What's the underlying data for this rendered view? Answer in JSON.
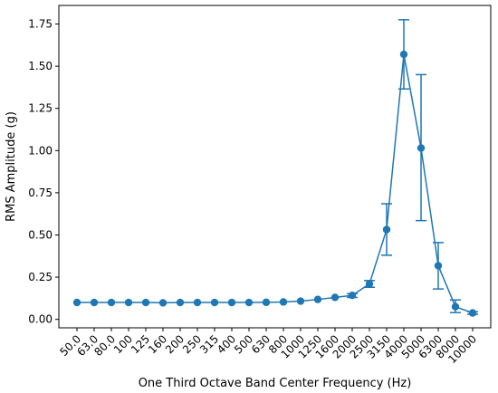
{
  "chart_data": {
    "type": "line",
    "title": "",
    "xlabel": "One Third Octave Band Center Frequency (Hz)",
    "ylabel": "RMS Amplitude (g)",
    "categories": [
      "50.0",
      "63.0",
      "80.0",
      "100",
      "125",
      "160",
      "200",
      "250",
      "315",
      "400",
      "500",
      "630",
      "800",
      "1000",
      "1250",
      "1600",
      "2000",
      "2500",
      "3150",
      "4000",
      "5000",
      "6300",
      "8000",
      "10000"
    ],
    "ylim": [
      -0.05,
      1.86
    ],
    "yticks": [
      "0.00",
      "0.25",
      "0.50",
      "0.75",
      "1.00",
      "1.25",
      "1.50",
      "1.75"
    ],
    "grid": false,
    "color": "#1f77b4",
    "series": [
      {
        "values": [
          0.1,
          0.1,
          0.1,
          0.1,
          0.1,
          0.098,
          0.1,
          0.1,
          0.1,
          0.1,
          0.1,
          0.101,
          0.103,
          0.108,
          0.118,
          0.13,
          0.142,
          0.21,
          0.532,
          1.57,
          1.015,
          0.318,
          0.075,
          0.038
        ],
        "error_lower": [
          0.1,
          0.1,
          0.1,
          0.1,
          0.1,
          0.098,
          0.1,
          0.1,
          0.1,
          0.1,
          0.1,
          0.101,
          0.103,
          0.108,
          0.118,
          0.13,
          0.13,
          0.19,
          0.38,
          1.365,
          0.585,
          0.18,
          0.04,
          0.03
        ],
        "error_upper": [
          0.1,
          0.1,
          0.1,
          0.1,
          0.1,
          0.098,
          0.1,
          0.1,
          0.1,
          0.1,
          0.1,
          0.101,
          0.103,
          0.108,
          0.118,
          0.13,
          0.152,
          0.23,
          0.685,
          1.775,
          1.45,
          0.455,
          0.115,
          0.045
        ]
      }
    ]
  }
}
